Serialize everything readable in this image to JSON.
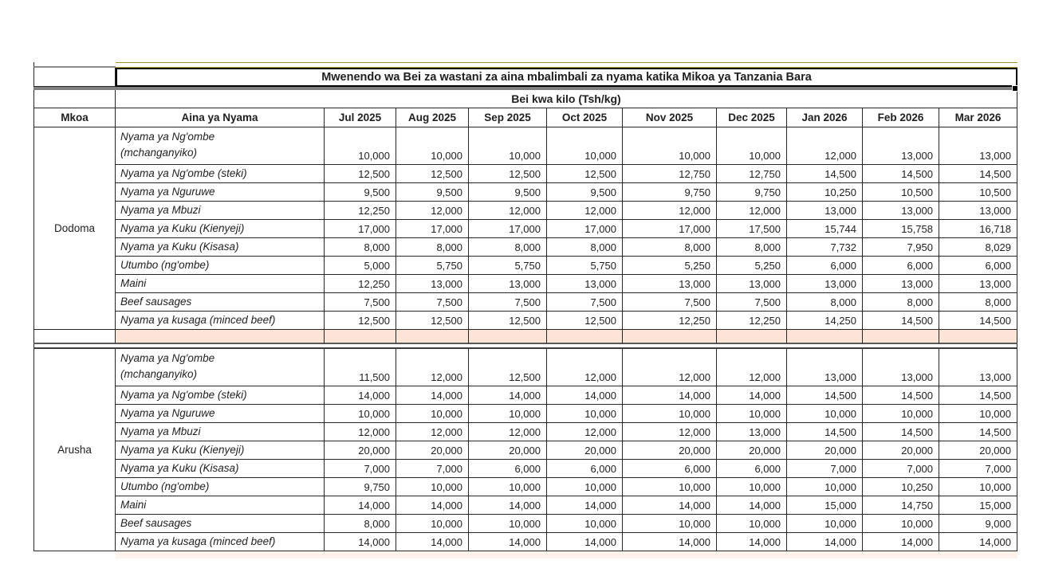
{
  "title": "Mwenendo wa Bei za wastani za aina mbalimbali za nyama katika Mikoa ya Tanzania Bara",
  "subtitle": "Bei kwa kilo (Tsh/kg)",
  "columns": [
    "Mkoa",
    "Aina ya Nyama",
    "Jul 2025",
    "Aug 2025",
    "Sep 2025",
    "Oct 2025",
    "Nov 2025",
    "Dec 2025",
    "Jan 2026",
    "Feb 2026",
    "Mar 2026"
  ],
  "regions": [
    {
      "name": "Dodoma",
      "rows": [
        {
          "name": "Nyama ya Ng'ombe\n(mchanganyiko)",
          "values": [
            "10,000",
            "10,000",
            "10,000",
            "10,000",
            "10,000",
            "10,000",
            "12,000",
            "13,000",
            "13,000"
          ]
        },
        {
          "name": "Nyama ya Ng'ombe (steki)",
          "values": [
            "12,500",
            "12,500",
            "12,500",
            "12,500",
            "12,750",
            "12,750",
            "14,500",
            "14,500",
            "14,500"
          ]
        },
        {
          "name": "Nyama ya Nguruwe",
          "values": [
            "9,500",
            "9,500",
            "9,500",
            "9,500",
            "9,750",
            "9,750",
            "10,250",
            "10,500",
            "10,500"
          ]
        },
        {
          "name": "Nyama ya Mbuzi",
          "values": [
            "12,250",
            "12,000",
            "12,000",
            "12,000",
            "12,000",
            "12,000",
            "13,000",
            "13,000",
            "13,000"
          ]
        },
        {
          "name": "Nyama ya Kuku (Kienyeji)",
          "values": [
            "17,000",
            "17,000",
            "17,000",
            "17,000",
            "17,000",
            "17,500",
            "15,744",
            "15,758",
            "16,718"
          ]
        },
        {
          "name": "Nyama ya Kuku (Kisasa)",
          "values": [
            "8,000",
            "8,000",
            "8,000",
            "8,000",
            "8,000",
            "8,000",
            "7,732",
            "7,950",
            "8,029"
          ]
        },
        {
          "name": "Utumbo (ng'ombe)",
          "values": [
            "5,000",
            "5,750",
            "5,750",
            "5,750",
            "5,250",
            "5,250",
            "6,000",
            "6,000",
            "6,000"
          ]
        },
        {
          "name": "Maini",
          "values": [
            "12,250",
            "13,000",
            "13,000",
            "13,000",
            "13,000",
            "13,000",
            "13,000",
            "13,000",
            "13,000"
          ]
        },
        {
          "name": "Beef sausages",
          "values": [
            "7,500",
            "7,500",
            "7,500",
            "7,500",
            "7,500",
            "7,500",
            "8,000",
            "8,000",
            "8,000"
          ]
        },
        {
          "name": "Nyama ya kusaga (minced beef)",
          "values": [
            "12,500",
            "12,500",
            "12,500",
            "12,500",
            "12,250",
            "12,250",
            "14,250",
            "14,500",
            "14,500"
          ]
        }
      ]
    },
    {
      "name": "Arusha",
      "rows": [
        {
          "name": "Nyama ya Ng'ombe\n(mchanganyiko)",
          "values": [
            "11,500",
            "12,000",
            "12,500",
            "12,000",
            "12,000",
            "12,000",
            "13,000",
            "13,000",
            "13,000"
          ]
        },
        {
          "name": "Nyama ya Ng'ombe (steki)",
          "values": [
            "14,000",
            "14,000",
            "14,000",
            "14,000",
            "14,000",
            "14,000",
            "14,500",
            "14,500",
            "14,500"
          ]
        },
        {
          "name": "Nyama ya Nguruwe",
          "values": [
            "10,000",
            "10,000",
            "10,000",
            "10,000",
            "10,000",
            "10,000",
            "10,000",
            "10,000",
            "10,000"
          ]
        },
        {
          "name": "Nyama ya Mbuzi",
          "values": [
            "12,000",
            "12,000",
            "12,000",
            "12,000",
            "12,000",
            "13,000",
            "14,500",
            "14,500",
            "14,500"
          ]
        },
        {
          "name": "Nyama ya Kuku (Kienyeji)",
          "values": [
            "20,000",
            "20,000",
            "20,000",
            "20,000",
            "20,000",
            "20,000",
            "20,000",
            "20,000",
            "20,000"
          ]
        },
        {
          "name": "Nyama ya Kuku (Kisasa)",
          "values": [
            "7,000",
            "7,000",
            "6,000",
            "6,000",
            "6,000",
            "6,000",
            "7,000",
            "7,000",
            "7,000"
          ]
        },
        {
          "name": "Utumbo (ng'ombe)",
          "values": [
            "9,750",
            "10,000",
            "10,000",
            "10,000",
            "10,000",
            "10,000",
            "10,000",
            "10,250",
            "10,000"
          ]
        },
        {
          "name": "Maini",
          "values": [
            "14,000",
            "14,000",
            "14,000",
            "14,000",
            "14,000",
            "14,000",
            "15,000",
            "14,750",
            "15,000"
          ]
        },
        {
          "name": "Beef sausages",
          "values": [
            "8,000",
            "10,000",
            "10,000",
            "10,000",
            "10,000",
            "10,000",
            "10,000",
            "10,000",
            "9,000"
          ]
        },
        {
          "name": "Nyama ya kusaga (minced beef)",
          "values": [
            "14,000",
            "14,000",
            "14,000",
            "14,000",
            "14,000",
            "14,000",
            "14,000",
            "14,000",
            "14,000"
          ]
        }
      ]
    }
  ],
  "colors": {
    "highlight_yellow": "#F2DC6B",
    "separator_peach": "#FCE4D6",
    "divider_gray": "#808080",
    "border": "#262626"
  }
}
